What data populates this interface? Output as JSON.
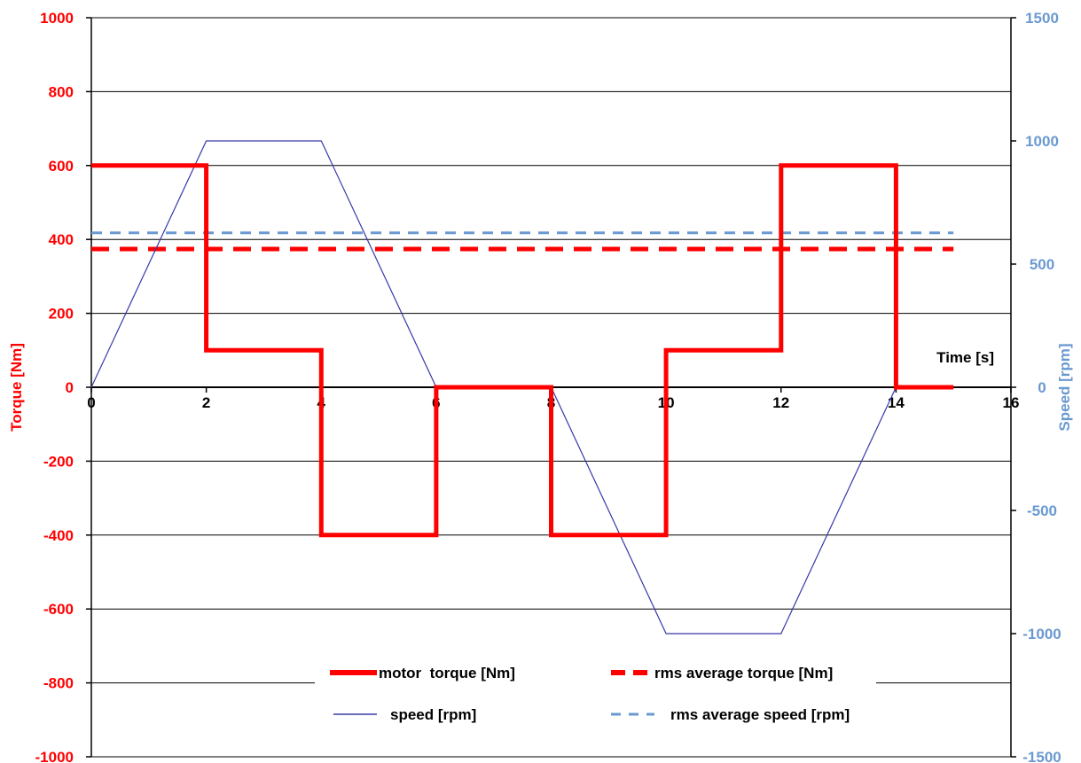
{
  "chart_data": {
    "type": "line",
    "x_axis": {
      "label": "Time [s]",
      "range": [
        0,
        16
      ],
      "ticks": [
        0,
        2,
        4,
        6,
        8,
        10,
        12,
        14,
        16
      ]
    },
    "y_left": {
      "label": "Torque [Nm]",
      "range": [
        -1000,
        1000
      ],
      "ticks": [
        1000,
        800,
        600,
        400,
        200,
        0,
        -200,
        -400,
        -600,
        -800,
        -1000
      ],
      "color": "#ff0000"
    },
    "y_right": {
      "label": "Speed [rpm]",
      "range": [
        -1500,
        1500
      ],
      "ticks": [
        1500,
        1000,
        500,
        0,
        -500,
        -1000,
        -1500
      ],
      "color": "#6a99d0"
    },
    "grid": "horizontal",
    "legend_position": "bottom-center",
    "series": [
      {
        "name": "motor  torque [Nm]",
        "axis": "left",
        "style": "solid-thick",
        "color": "#ff0000",
        "points": [
          [
            0,
            600
          ],
          [
            2,
            600
          ],
          [
            2,
            100
          ],
          [
            4,
            100
          ],
          [
            4,
            -400
          ],
          [
            6,
            -400
          ],
          [
            6,
            0
          ],
          [
            8,
            0
          ],
          [
            8,
            -400
          ],
          [
            10,
            -400
          ],
          [
            10,
            100
          ],
          [
            12,
            100
          ],
          [
            12,
            600
          ],
          [
            14,
            600
          ],
          [
            14,
            0
          ],
          [
            15,
            0
          ]
        ]
      },
      {
        "name": "rms average torque [Nm]",
        "axis": "left",
        "style": "dashed-thick",
        "color": "#ff0000",
        "points": [
          [
            0,
            374
          ],
          [
            15,
            374
          ]
        ]
      },
      {
        "name": "speed [rpm]",
        "axis": "right",
        "style": "solid-thin",
        "color": "#3838a8",
        "points": [
          [
            0,
            0
          ],
          [
            2,
            1000
          ],
          [
            4,
            1000
          ],
          [
            6,
            0
          ],
          [
            8,
            0
          ],
          [
            10,
            -1000
          ],
          [
            12,
            -1000
          ],
          [
            14,
            0
          ]
        ]
      },
      {
        "name": "rms average speed [rpm]",
        "axis": "right",
        "style": "dashed-thin",
        "color": "#6a99d0",
        "points": [
          [
            0,
            627
          ],
          [
            15,
            627
          ]
        ]
      }
    ]
  }
}
